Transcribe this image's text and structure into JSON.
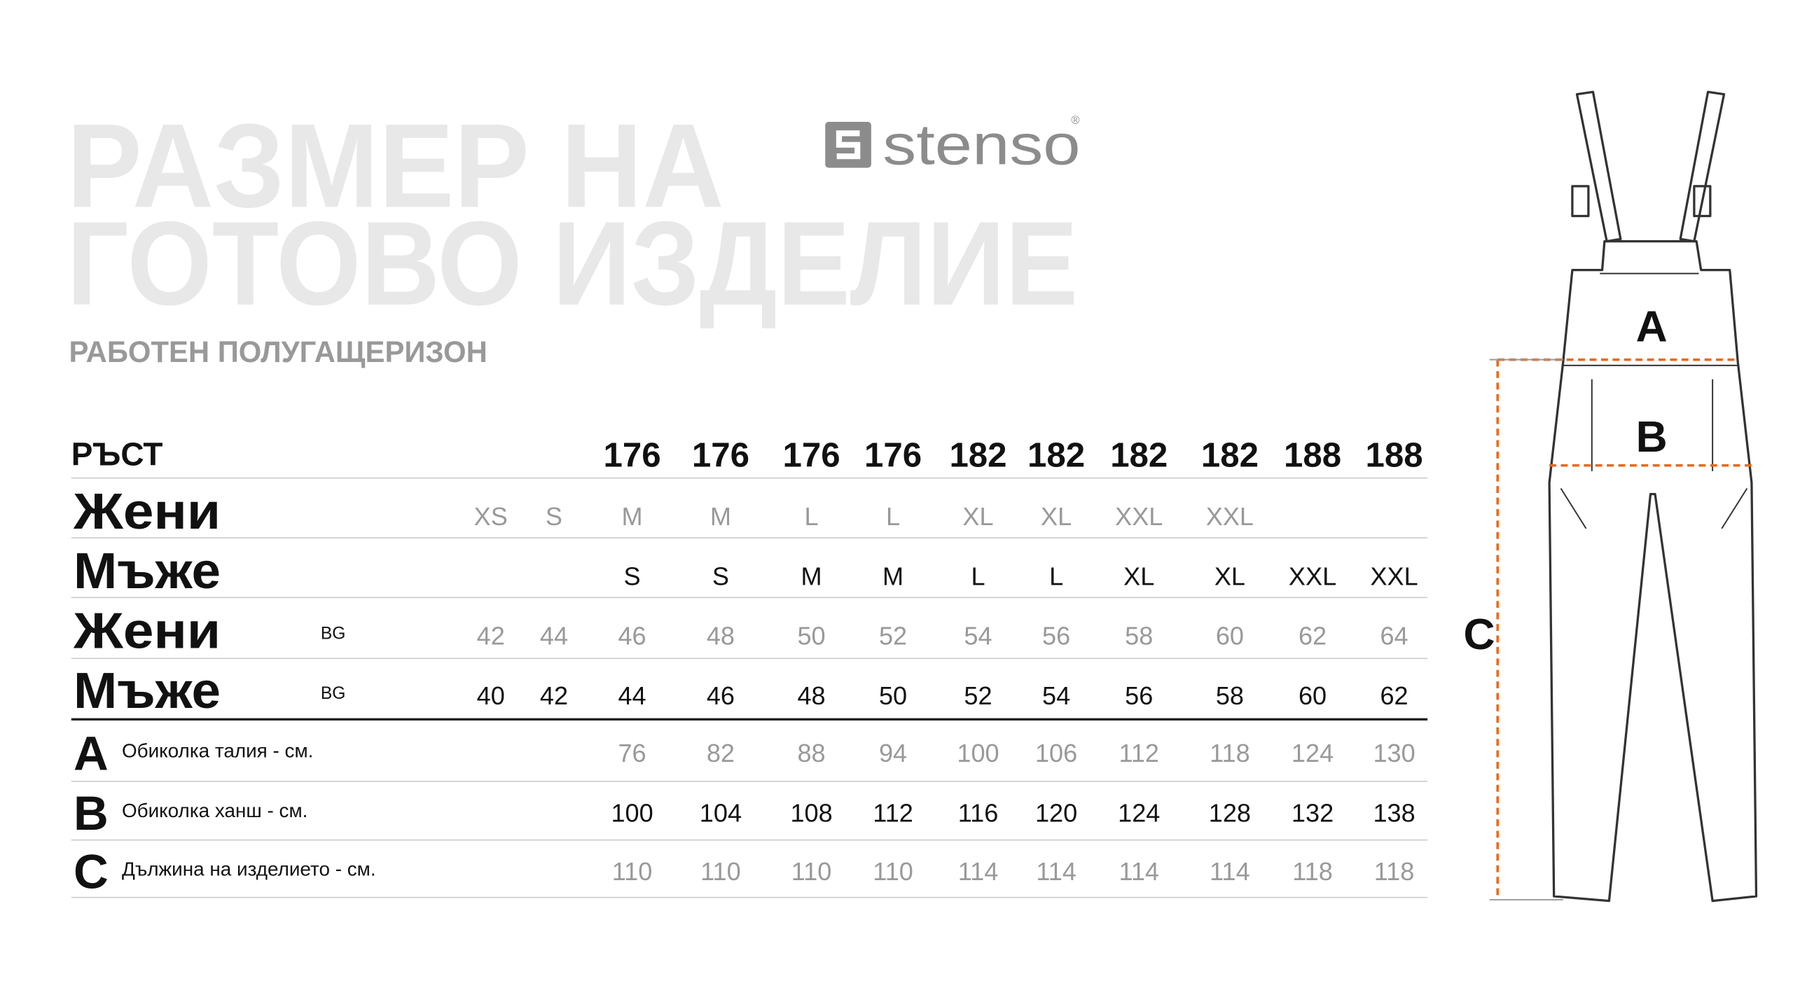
{
  "header": {
    "title_lines": [
      "РАЗМЕР НА",
      "ГОТОВО ИЗДЕЛИЕ"
    ],
    "brand": "stenso",
    "brand_mark": "®",
    "subtitle": "РАБОТЕН ПОЛУГАЩЕРИЗОН"
  },
  "table": {
    "height_label": "РЪСТ",
    "heights": [
      null,
      null,
      176,
      176,
      176,
      176,
      182,
      182,
      182,
      182,
      188,
      188
    ],
    "size_rows": [
      {
        "label": "Жени",
        "cells": [
          "XS",
          "S",
          "M",
          "M",
          "L",
          "L",
          "XL",
          "XL",
          "XXL",
          "XXL",
          null,
          null
        ]
      },
      {
        "label": "Мъже",
        "cells": [
          null,
          null,
          "S",
          "S",
          "M",
          "M",
          "L",
          "L",
          "XL",
          "XL",
          "XXL",
          "XXL"
        ]
      },
      {
        "label": "Жени",
        "tag": "BG",
        "cells": [
          42,
          44,
          46,
          48,
          50,
          52,
          54,
          56,
          58,
          60,
          62,
          64
        ]
      },
      {
        "label": "Мъже",
        "tag": "BG",
        "cells": [
          40,
          42,
          44,
          46,
          48,
          50,
          52,
          54,
          56,
          58,
          60,
          62
        ]
      }
    ],
    "measure_rows": [
      {
        "letter": "A",
        "label": "Обиколка талия - см.",
        "cells": [
          null,
          null,
          76,
          82,
          88,
          94,
          100,
          106,
          112,
          118,
          124,
          130
        ]
      },
      {
        "letter": "B",
        "label": "Обиколка ханш - см.",
        "cells": [
          null,
          null,
          100,
          104,
          108,
          112,
          116,
          120,
          124,
          128,
          132,
          138
        ]
      },
      {
        "letter": "C",
        "label": "Дължина на изделието - см.",
        "cells": [
          null,
          null,
          110,
          110,
          110,
          110,
          114,
          114,
          114,
          114,
          118,
          118
        ]
      }
    ]
  },
  "diagram": {
    "labels": [
      "A",
      "B",
      "C"
    ]
  }
}
